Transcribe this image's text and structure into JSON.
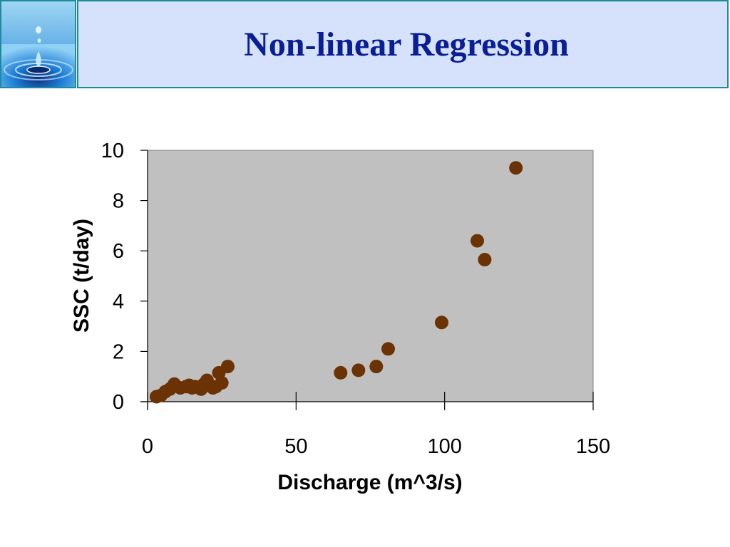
{
  "slide": {
    "title": "Non-linear Regression"
  },
  "logo": {
    "icon": "water-drop-icon"
  },
  "colors": {
    "title_text": "#0a1e96",
    "title_bg": "#d6e2fb",
    "border": "#1c8b9a",
    "plot_bg": "#c0c0c0",
    "marker": "#6b3304"
  },
  "chart_data": {
    "type": "scatter",
    "title": "",
    "xlabel": "Discharge (m^3/s)",
    "ylabel": "SSC (t/day)",
    "xlim": [
      0,
      150
    ],
    "ylim": [
      0,
      10
    ],
    "xticks": [
      0,
      50,
      100,
      150
    ],
    "yticks": [
      0,
      2,
      4,
      6,
      8,
      10
    ],
    "grid": false,
    "legend": "none",
    "series": [
      {
        "x": [
          3,
          4.5,
          6,
          7.5,
          8.5,
          9,
          11,
          13,
          14,
          15,
          16,
          18,
          19,
          20,
          22,
          23,
          24,
          25,
          27,
          65,
          71,
          77,
          81,
          99,
          111,
          113.5,
          124
        ],
        "y": [
          0.2,
          0.25,
          0.4,
          0.5,
          0.6,
          0.7,
          0.55,
          0.6,
          0.65,
          0.55,
          0.6,
          0.5,
          0.7,
          0.85,
          0.55,
          0.6,
          1.15,
          0.75,
          1.4,
          1.15,
          1.25,
          1.4,
          2.1,
          3.15,
          6.4,
          5.65,
          9.3
        ]
      }
    ]
  }
}
